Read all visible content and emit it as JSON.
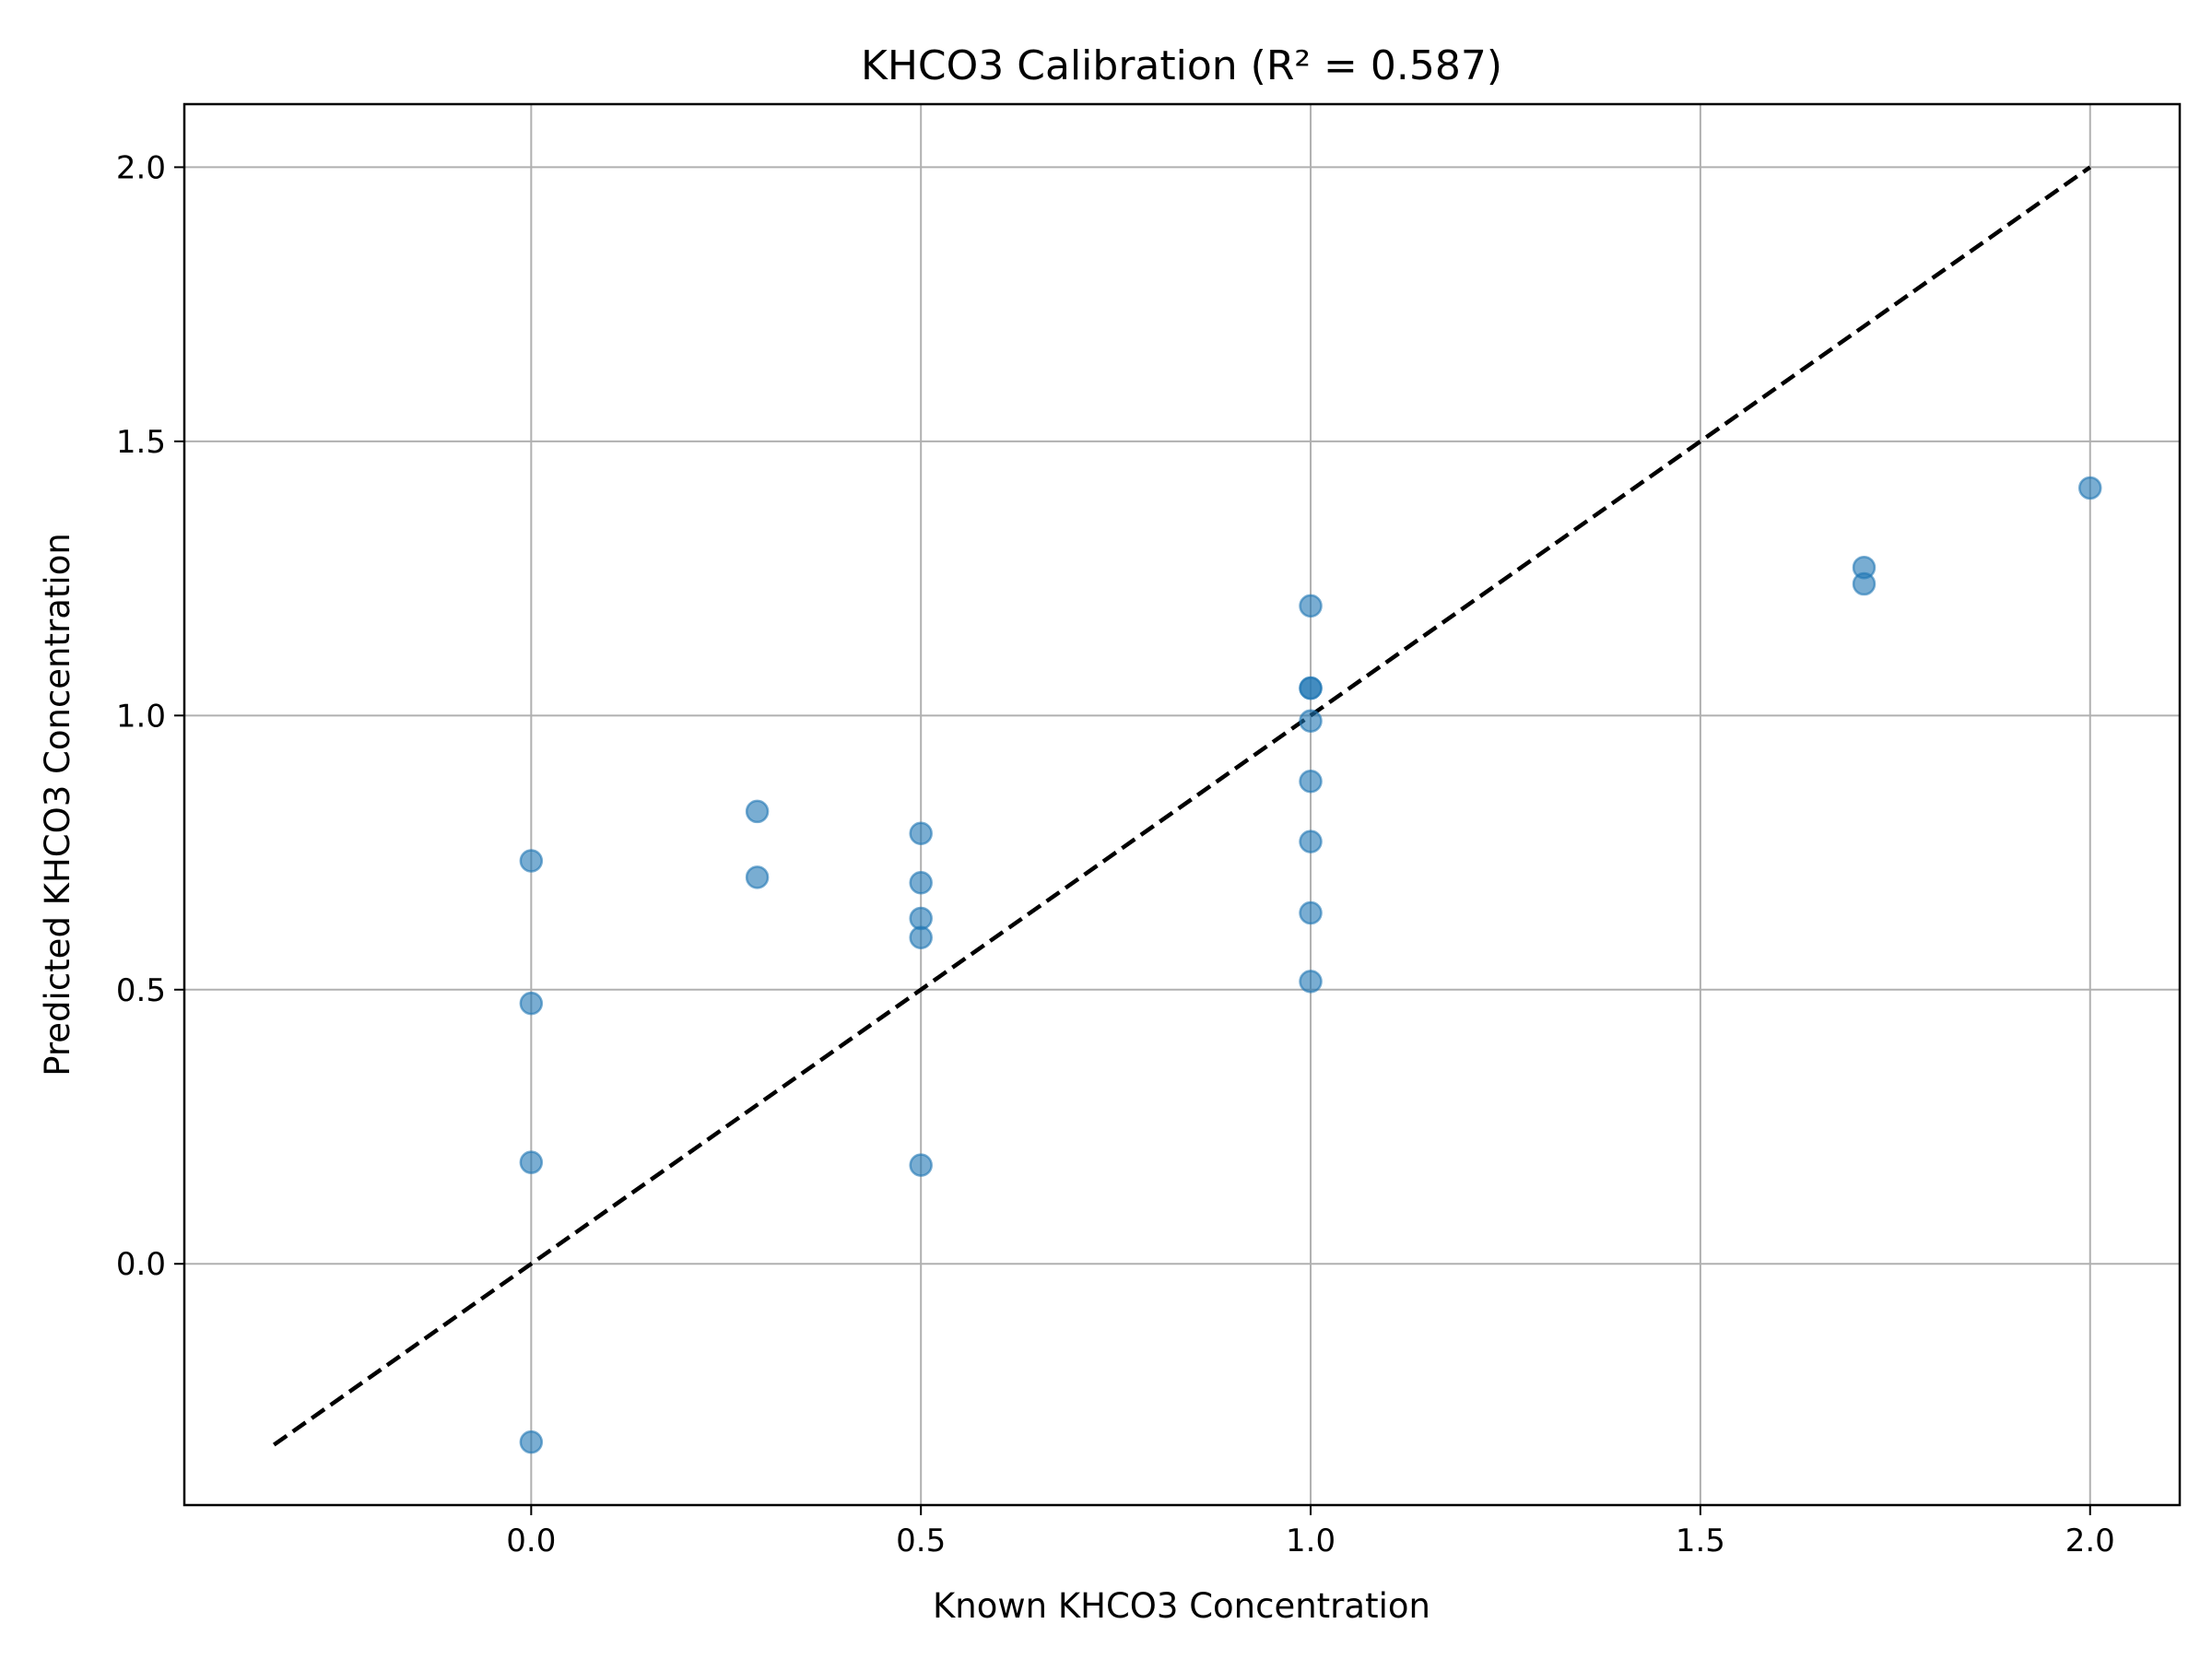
{
  "chart_data": {
    "type": "scatter",
    "title": "KHCO3 Calibration (R² = 0.587)",
    "xlabel": "Known KHCO3 Concentration",
    "ylabel": "Predicted KHCO3 Concentration",
    "xlim": [
      -0.445,
      2.115
    ],
    "ylim": [
      -0.44,
      2.115
    ],
    "xticks": [
      0.0,
      0.5,
      1.0,
      1.5,
      2.0
    ],
    "xtick_labels": [
      "0.0",
      "0.5",
      "1.0",
      "1.5",
      "2.0"
    ],
    "yticks": [
      0.0,
      0.5,
      1.0,
      1.5,
      2.0
    ],
    "ytick_labels": [
      "0.0",
      "0.5",
      "1.0",
      "1.5",
      "2.0"
    ],
    "grid": true,
    "legend": "none",
    "reference_line": {
      "style": "dashed",
      "color": "#000000",
      "x": [
        -0.33,
        2.0
      ],
      "y": [
        -0.33,
        2.0
      ]
    },
    "series": [
      {
        "color": "#1f77b4",
        "opacity": 0.6,
        "points": [
          {
            "x": 0.0,
            "y": 0.735
          },
          {
            "x": 0.0,
            "y": 0.475
          },
          {
            "x": 0.0,
            "y": 0.185
          },
          {
            "x": 0.0,
            "y": -0.325
          },
          {
            "x": 0.29,
            "y": 0.825
          },
          {
            "x": 0.29,
            "y": 0.705
          },
          {
            "x": 0.5,
            "y": 0.785
          },
          {
            "x": 0.5,
            "y": 0.695
          },
          {
            "x": 0.5,
            "y": 0.63
          },
          {
            "x": 0.5,
            "y": 0.595
          },
          {
            "x": 0.5,
            "y": 0.18
          },
          {
            "x": 1.0,
            "y": 1.2
          },
          {
            "x": 1.0,
            "y": 1.05
          },
          {
            "x": 1.0,
            "y": 1.05
          },
          {
            "x": 1.0,
            "y": 0.99
          },
          {
            "x": 1.0,
            "y": 0.88
          },
          {
            "x": 1.0,
            "y": 0.77
          },
          {
            "x": 1.0,
            "y": 0.64
          },
          {
            "x": 1.0,
            "y": 0.515
          },
          {
            "x": 1.71,
            "y": 1.27
          },
          {
            "x": 1.71,
            "y": 1.24
          },
          {
            "x": 2.0,
            "y": 1.415
          }
        ]
      }
    ]
  }
}
